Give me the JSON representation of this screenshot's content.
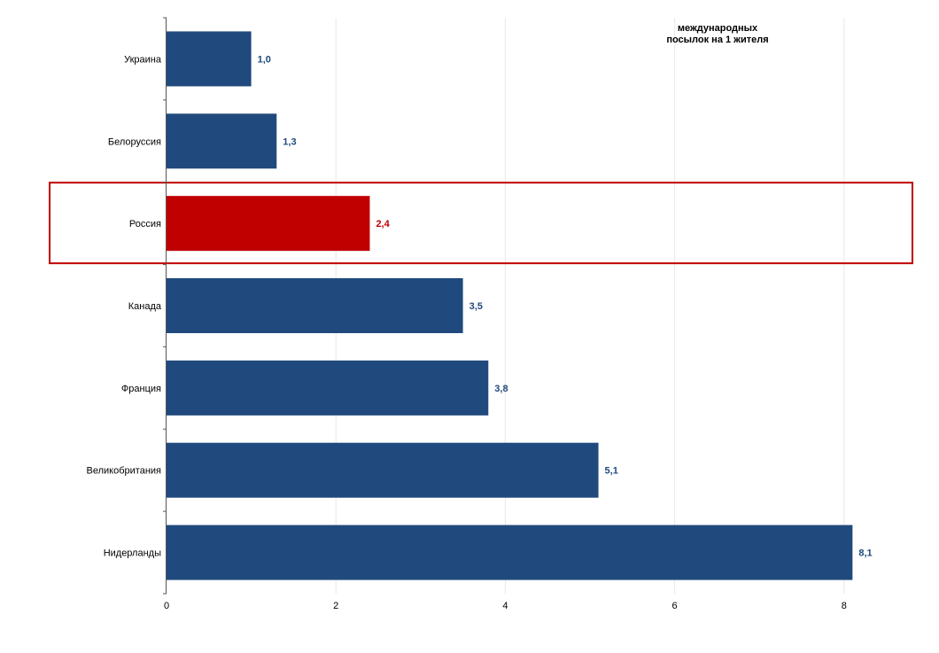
{
  "chart_data": {
    "type": "bar",
    "orientation": "horizontal",
    "title": "",
    "annotation": [
      "международных",
      "посылок на 1 жителя"
    ],
    "xlabel": "",
    "ylabel": "",
    "categories": [
      "Украина",
      "Белоруссия",
      "Россия",
      "Канада",
      "Франция",
      "Великобритания",
      "Нидерланды"
    ],
    "values": [
      1.0,
      1.3,
      2.4,
      3.5,
      3.8,
      5.1,
      8.1
    ],
    "value_labels": [
      "1,0",
      "1,3",
      "2,4",
      "3,5",
      "3,8",
      "5,1",
      "8,1"
    ],
    "highlight": "Россия",
    "xlim": [
      0,
      8.8
    ],
    "xticks": [
      0,
      2,
      4,
      6,
      8
    ],
    "xtick_labels": [
      "0",
      "2",
      "4",
      "6",
      "8"
    ],
    "grid": "vertical",
    "colors": {
      "bar": "#204a7d",
      "highlight_bar": "#c00000",
      "highlight_box": "#c00000",
      "grid": "#e8e8e8",
      "axis": "#555555"
    }
  }
}
